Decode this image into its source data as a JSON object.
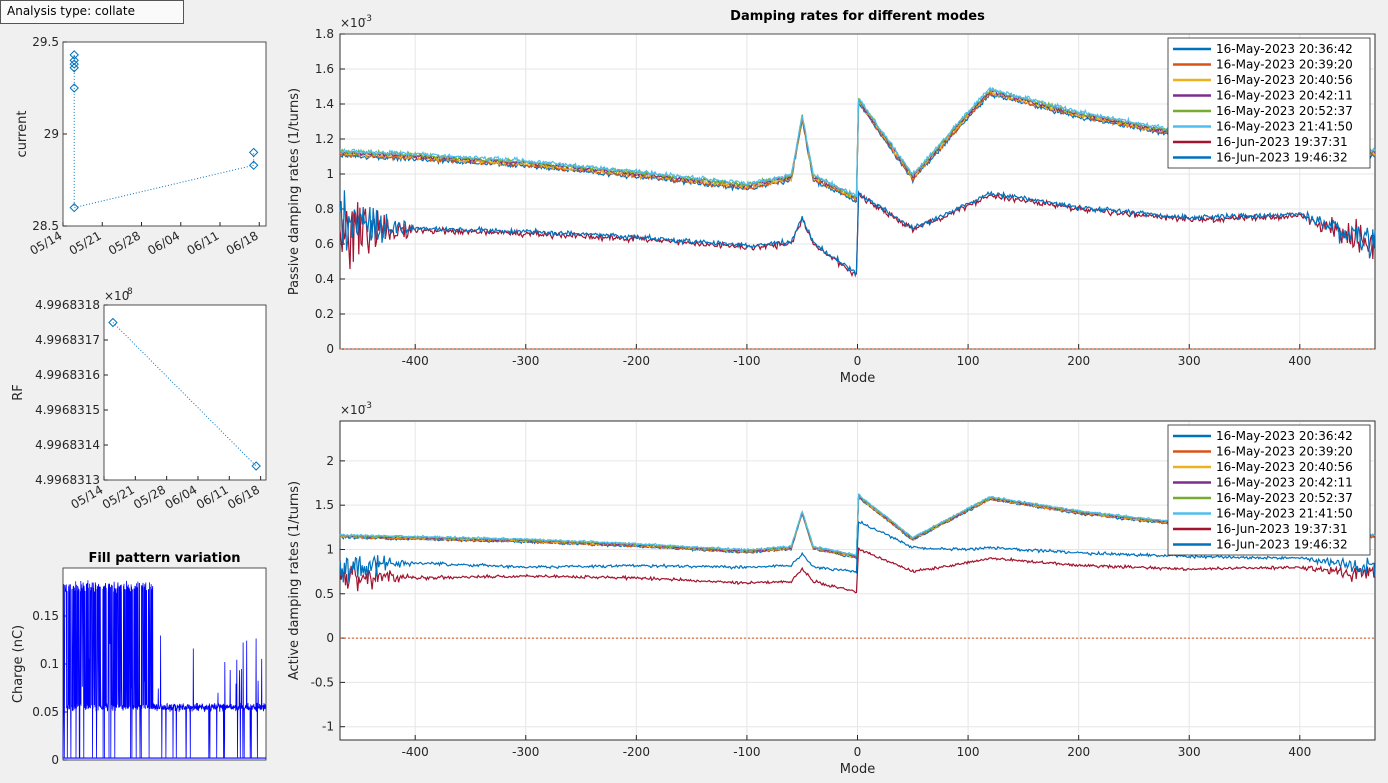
{
  "analysis_button": {
    "label": "Analysis type: collate"
  },
  "legend_entries": [
    "16-May-2023 20:36:42",
    "16-May-2023 20:39:20",
    "16-May-2023 20:40:56",
    "16-May-2023 20:42:11",
    "16-May-2023 20:52:37",
    "16-May-2023 21:41:50",
    "16-Jun-2023 19:37:31",
    "16-Jun-2023 19:46:32"
  ],
  "colors": {
    "series": [
      "#0072bd",
      "#d95319",
      "#edb120",
      "#7e2f8e",
      "#77ac30",
      "#4dbeee",
      "#a2142f",
      "#0072bd"
    ],
    "fill": "#0000ff",
    "marker": "#0072bd"
  },
  "chart_data": [
    {
      "id": "current",
      "type": "scatter",
      "title": "",
      "xlabel": "",
      "ylabel": "current",
      "ylim": [
        28.5,
        29.5
      ],
      "yticks": [
        "28.5",
        "29",
        "29.5"
      ],
      "xticks": [
        "05/14",
        "05/21",
        "05/28",
        "06/04",
        "06/11",
        "06/18"
      ],
      "series": [
        {
          "x": [
            "05/16",
            "05/16",
            "05/16",
            "05/16",
            "05/16",
            "05/16",
            "06/17",
            "06/17"
          ],
          "y": [
            29.43,
            29.4,
            29.38,
            29.36,
            29.25,
            28.6,
            28.83,
            28.9
          ]
        }
      ]
    },
    {
      "id": "rf",
      "type": "scatter",
      "title": "",
      "xlabel": "",
      "ylabel": "RF",
      "yexponent": "×10^8",
      "ylim": [
        4.9968313,
        4.9968318
      ],
      "yticks": [
        "4.9968313",
        "4.9968314",
        "4.9968315",
        "4.9968316",
        "4.9968317",
        "4.9968318"
      ],
      "xticks": [
        "05/14",
        "05/21",
        "05/28",
        "06/04",
        "06/11",
        "06/18"
      ],
      "series": [
        {
          "x": [
            "05/16",
            "06/17"
          ],
          "y": [
            4.99683175,
            4.99683134
          ]
        }
      ]
    },
    {
      "id": "fill",
      "type": "line",
      "title": "Fill pattern variation",
      "xlabel": "",
      "ylabel": "Charge (nC)",
      "ylim": [
        0,
        0.2
      ],
      "yticks": [
        "0",
        "0.05",
        "0.1",
        "0.15"
      ],
      "series": [
        {
          "description": "high-frequency fill pattern trace",
          "levels": [
            0.055,
            0.18
          ]
        }
      ]
    },
    {
      "id": "passive",
      "type": "line",
      "title": "Damping rates for different modes",
      "xlabel": "Mode",
      "ylabel": "Passive damping rates (1/turns)",
      "yexponent": "×10^-3",
      "xlim": [
        -468,
        468
      ],
      "ylim": [
        0,
        1.8
      ],
      "xticks": [
        "-400",
        "-300",
        "-200",
        "-100",
        "0",
        "100",
        "200",
        "300",
        "400"
      ],
      "yticks": [
        "0",
        "0.2",
        "0.4",
        "0.6",
        "0.8",
        "1",
        "1.2",
        "1.4",
        "1.6",
        "1.8"
      ],
      "legend": "top-right",
      "series": [
        {
          "name": "16-May-2023 20:36:42",
          "x": [
            -468,
            -400,
            -300,
            -200,
            -100,
            -60,
            -50,
            -40,
            -1,
            1,
            50,
            100,
            120,
            200,
            300,
            400,
            468
          ],
          "y": [
            1.12,
            1.1,
            1.06,
            1.0,
            0.93,
            0.98,
            1.32,
            0.98,
            0.86,
            1.42,
            0.98,
            1.34,
            1.47,
            1.34,
            1.22,
            1.18,
            1.12
          ]
        },
        {
          "name": "16-Jun-2023 19:37:31",
          "x": [
            -468,
            -400,
            -300,
            -200,
            -100,
            -60,
            -50,
            -40,
            -1,
            1,
            50,
            100,
            120,
            200,
            300,
            400,
            468
          ],
          "y": [
            0.7,
            0.68,
            0.66,
            0.63,
            0.58,
            0.6,
            0.74,
            0.6,
            0.42,
            0.88,
            0.68,
            0.82,
            0.88,
            0.8,
            0.74,
            0.76,
            0.6
          ]
        }
      ]
    },
    {
      "id": "active",
      "type": "line",
      "title": "",
      "xlabel": "Mode",
      "ylabel": "Active damping rates (1/turns)",
      "yexponent": "×10^-3",
      "xlim": [
        -468,
        468
      ],
      "ylim": [
        -1.15,
        2.45
      ],
      "xticks": [
        "-400",
        "-300",
        "-200",
        "-100",
        "0",
        "100",
        "200",
        "300",
        "400"
      ],
      "yticks": [
        "-1",
        "-0.5",
        "0",
        "0.5",
        "1",
        "1.5",
        "2"
      ],
      "legend": "top-right",
      "series": [
        {
          "name": "16-May-2023 20:36:42",
          "x": [
            -468,
            -400,
            -300,
            -200,
            -100,
            -60,
            -50,
            -40,
            -1,
            1,
            50,
            100,
            120,
            200,
            300,
            400,
            468
          ],
          "y": [
            1.15,
            1.13,
            1.1,
            1.05,
            0.98,
            1.02,
            1.42,
            1.02,
            0.92,
            1.6,
            1.12,
            1.45,
            1.58,
            1.42,
            1.28,
            1.25,
            1.15
          ]
        },
        {
          "name": "16-Jun-2023 19:37:31",
          "x": [
            -468,
            -400,
            -300,
            -200,
            -100,
            -60,
            -50,
            -40,
            -1,
            1,
            50,
            100,
            120,
            200,
            300,
            400,
            468
          ],
          "y": [
            0.72,
            0.68,
            0.7,
            0.68,
            0.62,
            0.64,
            0.78,
            0.64,
            0.52,
            1.0,
            0.75,
            0.85,
            0.9,
            0.82,
            0.78,
            0.8,
            0.7
          ]
        },
        {
          "name": "16-Jun-2023 19:46:32",
          "x": [
            -468,
            -400,
            -300,
            -200,
            -100,
            -60,
            -50,
            -40,
            -1,
            1,
            50,
            100,
            120,
            200,
            300,
            400,
            468
          ],
          "y": [
            0.82,
            0.85,
            0.8,
            0.82,
            0.8,
            0.82,
            0.95,
            0.8,
            0.75,
            1.32,
            1.02,
            1.0,
            1.02,
            0.96,
            0.92,
            0.9,
            0.8
          ]
        }
      ]
    }
  ]
}
